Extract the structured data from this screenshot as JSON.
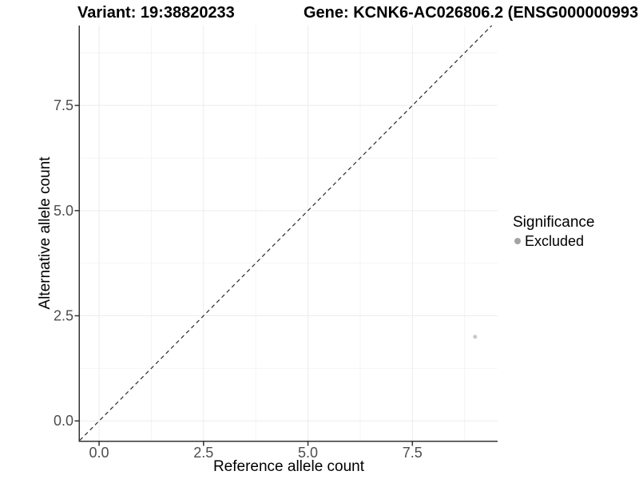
{
  "header": {
    "variant_title": "Variant: 19:38820233",
    "gene_title": "Gene: KCNK6-AC026806.2 (ENSG000000993"
  },
  "chart_data": {
    "type": "scatter",
    "xlabel": "Reference allele count",
    "ylabel": "Alternative allele count",
    "xlim": [
      -0.46,
      9.54
    ],
    "ylim": [
      -0.47,
      9.4
    ],
    "x_major_ticks": [
      0,
      2.5,
      5,
      7.5
    ],
    "y_major_ticks": [
      0,
      2.5,
      5,
      7.5
    ],
    "x_minor_gridlines": [
      1.25,
      3.75,
      6.25,
      8.75
    ],
    "y_minor_gridlines": [
      1.25,
      3.75,
      6.25,
      8.75
    ],
    "tick_label_decimals": 1,
    "grid": "major+minor",
    "points": [
      {
        "x": 9,
        "y": 2,
        "series": "Excluded",
        "color": "#c8c8c8",
        "radius": 2.5
      }
    ],
    "identity_line": {
      "slope": 1,
      "intercept": 0,
      "linetype": "dashed",
      "color": "#2a2a2a"
    },
    "legend": {
      "title": "Significance",
      "position": "right",
      "entries": [
        {
          "label": "Excluded",
          "color": "#a3a3a3"
        }
      ]
    },
    "style": {
      "axis_line_color": "#333333",
      "tick_color": "#333333",
      "major_grid_color": "#ececec",
      "minor_grid_color": "#f4f4f4",
      "tick_label_color": "#4d4d4d"
    }
  }
}
